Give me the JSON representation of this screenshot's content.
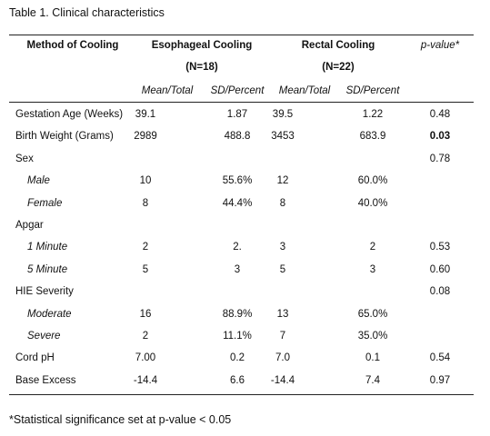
{
  "header": {
    "title": "Table 1. Clinical characteristics"
  },
  "table": {
    "columns": {
      "method": "Method of Cooling",
      "group1": "Esophageal Cooling",
      "group1_n": "(N=18)",
      "group2": "Rectal Cooling",
      "group2_n": "(N=22)",
      "p": "p-value*",
      "sub": [
        "Mean/Total",
        "SD/Percent",
        "Mean/Total",
        "SD/Percent"
      ]
    },
    "rows": [
      {
        "label": "Gestation Age (Weeks)",
        "cells": [
          "39.1",
          "1.87",
          "39.5",
          "1.22",
          "0.48"
        ]
      },
      {
        "label": "Birth Weight (Grams)",
        "cells": [
          "2989",
          "488.8",
          "3453",
          "683.9",
          "0.03"
        ],
        "p_bold": true
      },
      {
        "label": "Sex",
        "cells": [
          null,
          null,
          null,
          null,
          "0.78"
        ]
      },
      {
        "label": "Male",
        "indent": true,
        "cells": [
          "10",
          "55.6%",
          "12",
          "60.0%",
          null
        ]
      },
      {
        "label": "Female",
        "indent": true,
        "cells": [
          "8",
          "44.4%",
          "8",
          "40.0%",
          null
        ]
      },
      {
        "label": "Apgar",
        "cells": [
          null,
          null,
          null,
          null,
          null
        ]
      },
      {
        "label": "1 Minute",
        "indent": true,
        "cells": [
          "2",
          "2.",
          "3",
          "2",
          "0.53"
        ]
      },
      {
        "label": "5 Minute",
        "indent": true,
        "cells": [
          "5",
          "3",
          "5",
          "3",
          "0.60"
        ]
      },
      {
        "label": "HIE Severity",
        "cells": [
          null,
          null,
          null,
          null,
          "0.08"
        ]
      },
      {
        "label": "Moderate",
        "indent": true,
        "cells": [
          "16",
          "88.9%",
          "13",
          "65.0%",
          null
        ]
      },
      {
        "label": "Severe",
        "indent": true,
        "cells": [
          "2",
          "11.1%",
          "7",
          "35.0%",
          null
        ]
      },
      {
        "label": "Cord pH",
        "cells": [
          "7.00",
          "0.2",
          "7.0",
          "0.1",
          "0.54"
        ]
      },
      {
        "label": "Base Excess",
        "cells": [
          "-14.4",
          "6.6",
          "-14.4",
          "7.4",
          "0.97"
        ]
      }
    ]
  },
  "footnote": "*Statistical significance set at p-value < 0.05"
}
